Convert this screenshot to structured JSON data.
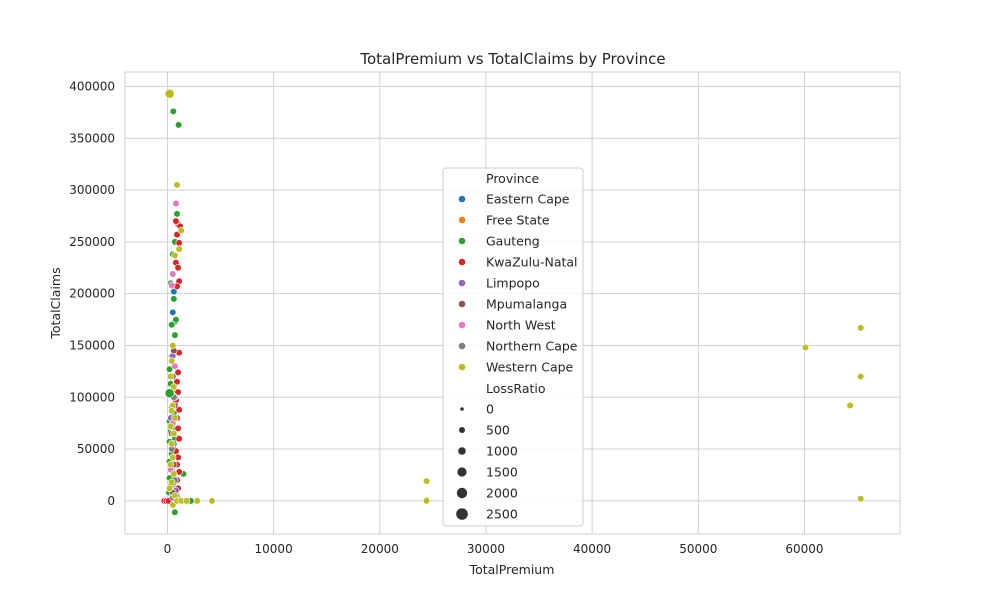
{
  "chart_data": {
    "type": "scatter",
    "title": "TotalPremium vs TotalClaims by Province",
    "xlabel": "TotalPremium",
    "ylabel": "TotalClaims",
    "xlim": [
      -4000,
      69000
    ],
    "ylim": [
      -32000,
      414000
    ],
    "xticks": [
      0,
      10000,
      20000,
      30000,
      40000,
      50000,
      60000
    ],
    "yticks": [
      0,
      50000,
      100000,
      150000,
      200000,
      250000,
      300000,
      350000,
      400000
    ],
    "xtick_labels": [
      "0",
      "10000",
      "20000",
      "30000",
      "40000",
      "50000",
      "60000"
    ],
    "ytick_labels": [
      "0",
      "50000",
      "100000",
      "150000",
      "200000",
      "250000",
      "300000",
      "350000",
      "400000"
    ],
    "grid": true,
    "legend_placement": "center",
    "hue_legend_title": "Province",
    "size_legend_title": "LossRatio",
    "size_legend_values": [
      0,
      500,
      1000,
      1500,
      2000,
      2500
    ],
    "size_legend_labels": [
      "0",
      "500",
      "1000",
      "1500",
      "2000",
      "2500"
    ],
    "series": [
      {
        "name": "Eastern Cape",
        "color": "#1f77b4",
        "points": [
          [
            600,
            202000
          ],
          [
            500,
            182000
          ],
          [
            700,
            173000
          ],
          [
            400,
            140000
          ],
          [
            600,
            110000
          ],
          [
            500,
            85000
          ],
          [
            700,
            62000
          ],
          [
            400,
            40000
          ],
          [
            600,
            20000
          ],
          [
            500,
            0
          ],
          [
            900,
            5000
          ]
        ]
      },
      {
        "name": "Free State",
        "color": "#ff7f0e",
        "points": [
          [
            300,
            30000
          ],
          [
            500,
            15000
          ],
          [
            700,
            45000
          ],
          [
            400,
            5000
          ],
          [
            600,
            0
          ]
        ]
      },
      {
        "name": "Gauteng",
        "color": "#2ca02c",
        "points": [
          [
            550,
            376000
          ],
          [
            1050,
            363000
          ],
          [
            900,
            277000
          ],
          [
            700,
            250000
          ],
          [
            500,
            238000
          ],
          [
            300,
            210000
          ],
          [
            600,
            195000
          ],
          [
            800,
            175000
          ],
          [
            400,
            170000
          ],
          [
            700,
            160000
          ],
          [
            200,
            127000
          ],
          [
            500,
            120000
          ],
          [
            300,
            113000
          ],
          [
            600,
            108000
          ],
          [
            200,
            104000
          ],
          [
            800,
            96000
          ],
          [
            400,
            90000
          ],
          [
            600,
            85000
          ],
          [
            200,
            77000
          ],
          [
            500,
            70000
          ],
          [
            300,
            67000
          ],
          [
            700,
            60000
          ],
          [
            200,
            57000
          ],
          [
            600,
            50000
          ],
          [
            400,
            45000
          ],
          [
            200,
            38000
          ],
          [
            700,
            35000
          ],
          [
            300,
            32000
          ],
          [
            500,
            28000
          ],
          [
            200,
            22000
          ],
          [
            1500,
            26000
          ],
          [
            600,
            18000
          ],
          [
            300,
            14000
          ],
          [
            800,
            10000
          ],
          [
            150,
            8000
          ],
          [
            500,
            5000
          ],
          [
            1000,
            2000
          ],
          [
            1400,
            0
          ],
          [
            1600,
            0
          ],
          [
            2000,
            0
          ],
          [
            2200,
            0
          ],
          [
            700,
            -11000
          ],
          [
            300,
            0
          ]
        ]
      },
      {
        "name": "KwaZulu-Natal",
        "color": "#d62728",
        "points": [
          [
            1000,
            267000
          ],
          [
            800,
            270000
          ],
          [
            1200,
            265000
          ],
          [
            900,
            257000
          ],
          [
            1100,
            249000
          ],
          [
            800,
            230000
          ],
          [
            1000,
            225000
          ],
          [
            1100,
            212000
          ],
          [
            900,
            207000
          ],
          [
            1100,
            143000
          ],
          [
            1000,
            124000
          ],
          [
            900,
            115000
          ],
          [
            1000,
            105000
          ],
          [
            800,
            97000
          ],
          [
            1100,
            88000
          ],
          [
            900,
            80000
          ],
          [
            1000,
            70000
          ],
          [
            1100,
            60000
          ],
          [
            800,
            48000
          ],
          [
            1000,
            42000
          ],
          [
            900,
            35000
          ],
          [
            1100,
            28000
          ],
          [
            900,
            20000
          ],
          [
            1000,
            12000
          ],
          [
            800,
            5000
          ],
          [
            -300,
            0
          ],
          [
            -100,
            0
          ],
          [
            100,
            0
          ]
        ]
      },
      {
        "name": "Limpopo",
        "color": "#9467bd",
        "points": [
          [
            500,
            140000
          ],
          [
            700,
            100000
          ],
          [
            300,
            80000
          ],
          [
            600,
            55000
          ],
          [
            400,
            30000
          ],
          [
            800,
            10000
          ]
        ]
      },
      {
        "name": "Mpumalanga",
        "color": "#8c564b",
        "points": [
          [
            600,
            145000
          ],
          [
            500,
            120000
          ],
          [
            700,
            92000
          ],
          [
            400,
            65000
          ],
          [
            600,
            35000
          ],
          [
            500,
            8000
          ]
        ]
      },
      {
        "name": "North West",
        "color": "#e377c2",
        "points": [
          [
            800,
            287000
          ],
          [
            500,
            219000
          ],
          [
            400,
            208000
          ],
          [
            700,
            130000
          ],
          [
            500,
            75000
          ],
          [
            300,
            30000
          ]
        ]
      },
      {
        "name": "Northern Cape",
        "color": "#7f7f7f",
        "points": [
          [
            600,
            100000
          ],
          [
            400,
            50000
          ],
          [
            700,
            20000
          ],
          [
            500,
            3000
          ]
        ]
      },
      {
        "name": "Western Cape",
        "color": "#bcbd22",
        "points": [
          [
            200,
            393000
          ],
          [
            900,
            305000
          ],
          [
            1300,
            261000
          ],
          [
            1100,
            243000
          ],
          [
            700,
            237000
          ],
          [
            500,
            150000
          ],
          [
            400,
            135000
          ],
          [
            300,
            120000
          ],
          [
            600,
            110000
          ],
          [
            500,
            92000
          ],
          [
            400,
            87000
          ],
          [
            700,
            80000
          ],
          [
            300,
            72000
          ],
          [
            600,
            65000
          ],
          [
            400,
            55000
          ],
          [
            500,
            42000
          ],
          [
            300,
            35000
          ],
          [
            600,
            26000
          ],
          [
            400,
            18000
          ],
          [
            200,
            12000
          ],
          [
            700,
            5000
          ],
          [
            500,
            -4000
          ],
          [
            900,
            0
          ],
          [
            1300,
            0
          ],
          [
            1800,
            0
          ],
          [
            2800,
            0
          ],
          [
            4200,
            0
          ],
          [
            24400,
            19000
          ],
          [
            24400,
            1000
          ],
          [
            24400,
            0
          ],
          [
            60100,
            148000
          ],
          [
            65300,
            167000
          ],
          [
            65300,
            120000
          ],
          [
            64300,
            92000
          ],
          [
            65300,
            2000
          ]
        ]
      }
    ]
  }
}
